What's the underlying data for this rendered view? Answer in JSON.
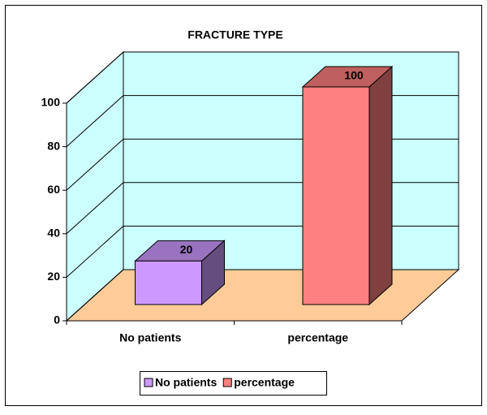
{
  "chart_data": {
    "type": "bar3d",
    "title": "FRACTURE TYPE",
    "categories": [
      "No patients",
      "percentage"
    ],
    "values": [
      20,
      100
    ],
    "colors": [
      "#cc99ff",
      "#ff8080"
    ],
    "ylim": [
      0,
      100
    ],
    "yticks": [
      0,
      20,
      40,
      60,
      80,
      100
    ],
    "grid": true,
    "legend": "bottom"
  }
}
